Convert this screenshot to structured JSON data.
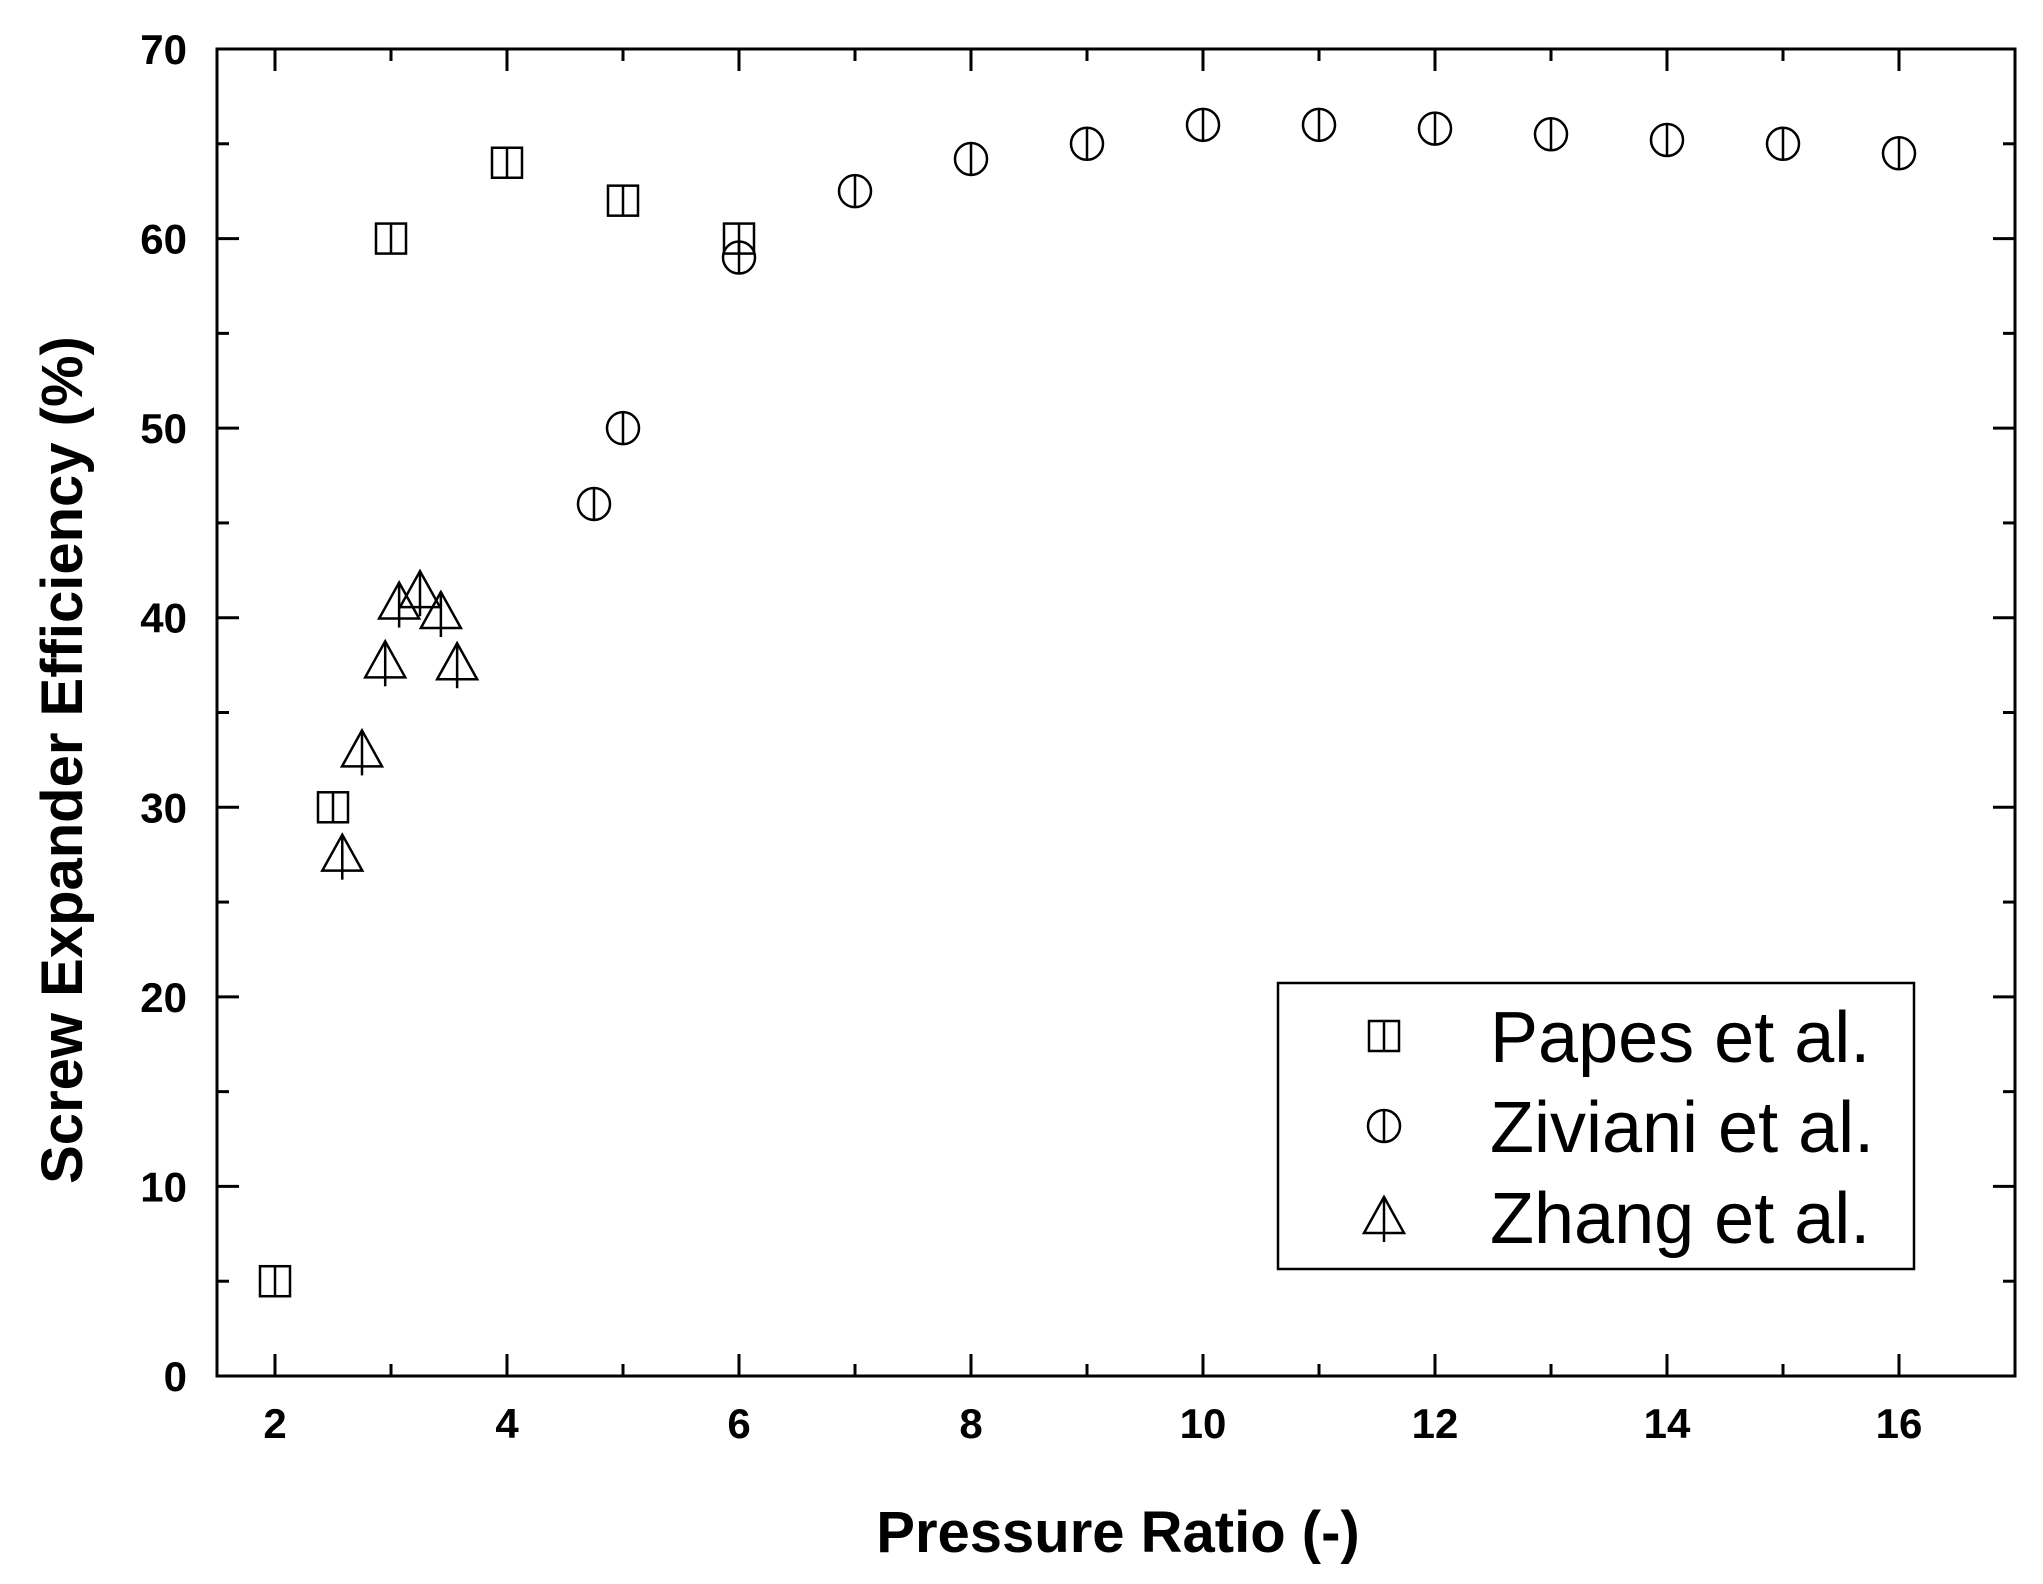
{
  "chart_data": {
    "type": "scatter",
    "xlabel": "Pressure Ratio (-)",
    "ylabel": "Screw Expander Efficiency (%)",
    "xlim": [
      1.5,
      17.0
    ],
    "ylim": [
      0,
      70
    ],
    "x_ticks": [
      2,
      4,
      6,
      8,
      10,
      12,
      14,
      16
    ],
    "y_ticks": [
      0,
      10,
      20,
      30,
      40,
      50,
      60,
      70
    ],
    "x_ticks_minor": [
      3,
      5,
      7,
      9,
      11,
      13,
      15
    ],
    "y_ticks_minor": [
      5,
      15,
      25,
      35,
      45,
      55,
      65
    ],
    "grid": false,
    "legend_position": "bottom-right",
    "series": [
      {
        "name": "Papes et al.",
        "marker": "square",
        "points": [
          {
            "x": 2.0,
            "y": 5.0
          },
          {
            "x": 2.5,
            "y": 30.0
          },
          {
            "x": 3.0,
            "y": 60.0
          },
          {
            "x": 4.0,
            "y": 64.0
          },
          {
            "x": 5.0,
            "y": 62.0
          },
          {
            "x": 6.0,
            "y": 60.0
          }
        ]
      },
      {
        "name": "Ziviani et al.",
        "marker": "circle",
        "points": [
          {
            "x": 4.75,
            "y": 46.0
          },
          {
            "x": 5.0,
            "y": 50.0
          },
          {
            "x": 6.0,
            "y": 59.0
          },
          {
            "x": 7.0,
            "y": 62.5
          },
          {
            "x": 8.0,
            "y": 64.2
          },
          {
            "x": 9.0,
            "y": 65.0
          },
          {
            "x": 10.0,
            "y": 66.0
          },
          {
            "x": 11.0,
            "y": 66.0
          },
          {
            "x": 12.0,
            "y": 65.8
          },
          {
            "x": 13.0,
            "y": 65.5
          },
          {
            "x": 14.0,
            "y": 65.2
          },
          {
            "x": 15.0,
            "y": 65.0
          },
          {
            "x": 16.0,
            "y": 64.5
          }
        ]
      },
      {
        "name": "Zhang et al.",
        "marker": "triangle",
        "points": [
          {
            "x": 2.58,
            "y": 27.5
          },
          {
            "x": 2.75,
            "y": 33.0
          },
          {
            "x": 2.95,
            "y": 37.7
          },
          {
            "x": 3.07,
            "y": 40.8
          },
          {
            "x": 3.25,
            "y": 41.4
          },
          {
            "x": 3.43,
            "y": 40.3
          },
          {
            "x": 3.57,
            "y": 37.6
          }
        ]
      }
    ]
  }
}
